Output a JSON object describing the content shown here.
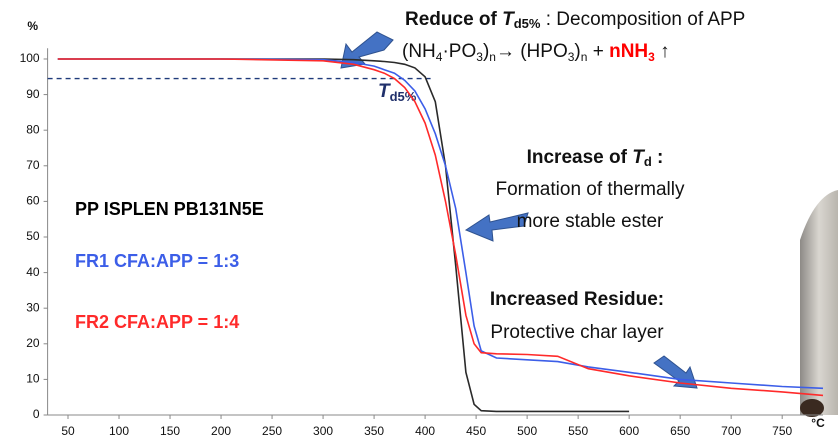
{
  "chart_data": {
    "type": "line",
    "y_unit": "%",
    "x_unit": "°C",
    "xlim": [
      30,
      790
    ],
    "xticks": [
      50,
      100,
      150,
      200,
      250,
      300,
      350,
      400,
      450,
      500,
      550,
      600,
      650,
      700,
      750
    ],
    "ylim": [
      0,
      103
    ],
    "yticks": [
      0,
      10,
      20,
      30,
      40,
      50,
      60,
      70,
      80,
      90,
      100
    ],
    "threshold": 94.5,
    "x": [
      40,
      100,
      200,
      300,
      330,
      350,
      360,
      370,
      380,
      390,
      400,
      410,
      420,
      430,
      440,
      448,
      455,
      470,
      500,
      530,
      560,
      600,
      650,
      700,
      750,
      790
    ],
    "series": [
      {
        "name": "PP ISPLEN PB131N5E",
        "color": "#2a2a2a",
        "values": [
          100,
          100,
          100,
          100,
          99.8,
          99.5,
          99.3,
          99,
          98.5,
          97.5,
          95,
          88,
          70,
          42,
          12,
          3,
          1.2,
          1,
          1,
          1,
          1,
          1,
          null,
          null,
          null,
          null
        ]
      },
      {
        "name": "FR1 CFA:APP = 1:3",
        "color": "#3c5ee8",
        "values": [
          100,
          100,
          100,
          99.8,
          99,
          98,
          97,
          96,
          94,
          91,
          86,
          79,
          70,
          58,
          40,
          25,
          18,
          16,
          15.5,
          15,
          13.5,
          12,
          10,
          9,
          8,
          7.5
        ]
      },
      {
        "name": "FR2 CFA:APP = 1:4",
        "color": "#ff2a2a",
        "values": [
          100,
          100,
          100,
          99.5,
          98.5,
          97,
          96,
          94.5,
          92,
          88,
          82,
          73,
          60,
          45,
          28,
          20,
          17.5,
          17.2,
          17,
          16.5,
          13,
          11,
          9,
          7.5,
          6.5,
          5.5
        ]
      }
    ],
    "annotations": {
      "reduce": [
        "Reduce of ",
        "T",
        "d5%",
        " :  Decomposition of APP"
      ],
      "reaction": [
        "(NH",
        "4",
        "·PO",
        "3",
        ")",
        "n",
        "→ (HPO",
        "3",
        ")",
        "n",
        " + ",
        "nNH",
        "3",
        " ↑"
      ],
      "td_label": [
        "T",
        "d5%"
      ],
      "increase": [
        "Increase of ",
        "T",
        "d",
        " :"
      ],
      "increase_text": [
        "Formation of thermally",
        "more stable ester"
      ],
      "residue": "Increased Residue:",
      "residue_text": "Protective char layer"
    }
  }
}
